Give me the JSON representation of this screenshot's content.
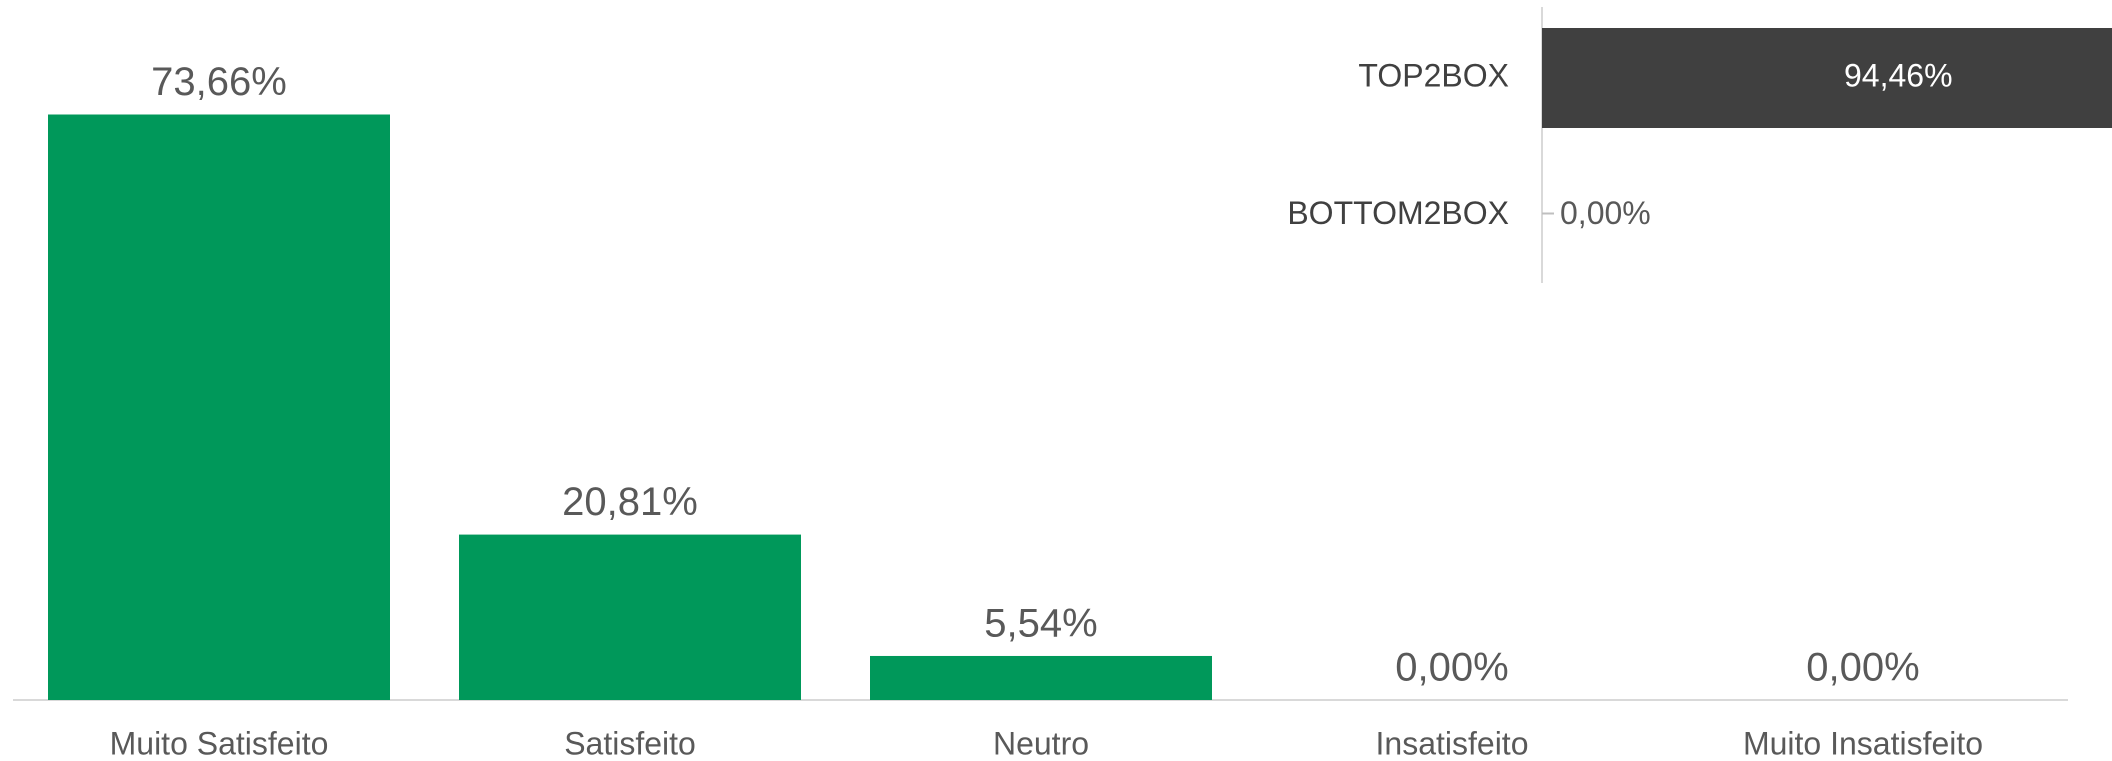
{
  "chart_data": [
    {
      "type": "bar",
      "categories": [
        "Muito Satisfeito",
        "Satisfeito",
        "Neutro",
        "Insatisfeito",
        "Muito Insatisfeito"
      ],
      "values": [
        73.66,
        20.81,
        5.54,
        0,
        0
      ],
      "value_labels": [
        "73,66%",
        "20,81%",
        "5,54%",
        "0,00%",
        "0,00%"
      ],
      "color": "#00985a"
    },
    {
      "type": "barh",
      "categories": [
        "TOP2BOX",
        "BOTTOM2BOX"
      ],
      "values": [
        94.46,
        0
      ],
      "value_labels": [
        "94,46%",
        "0,00%"
      ],
      "color": "#404040"
    }
  ]
}
